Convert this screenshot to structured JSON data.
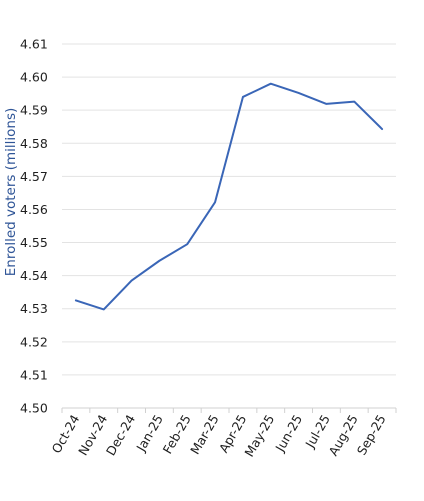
{
  "chart_data": {
    "type": "line",
    "title": "",
    "xlabel": "",
    "ylabel": "Enrolled voters (millions)",
    "categories": [
      "Oct-24",
      "Nov-24",
      "Dec-24",
      "Jan-25",
      "Feb-25",
      "Mar-25",
      "Apr-25",
      "May-25",
      "Jun-25",
      "Jul-25",
      "Aug-25",
      "Sep-25"
    ],
    "series": [
      {
        "values": [
          4.5325,
          4.5298,
          4.5385,
          4.5445,
          4.5495,
          4.5622,
          4.594,
          4.598,
          4.5952,
          4.5919,
          4.5926,
          4.5843
        ]
      }
    ],
    "ylim": [
      4.5,
      4.61
    ],
    "yticks": [
      "4.50",
      "4.51",
      "4.52",
      "4.53",
      "4.54",
      "4.55",
      "4.56",
      "4.57",
      "4.58",
      "4.59",
      "4.60",
      "4.61"
    ],
    "grid": true,
    "legend": "none",
    "line_color": "#3a66b7",
    "ylabel_color": "#2f5597"
  }
}
